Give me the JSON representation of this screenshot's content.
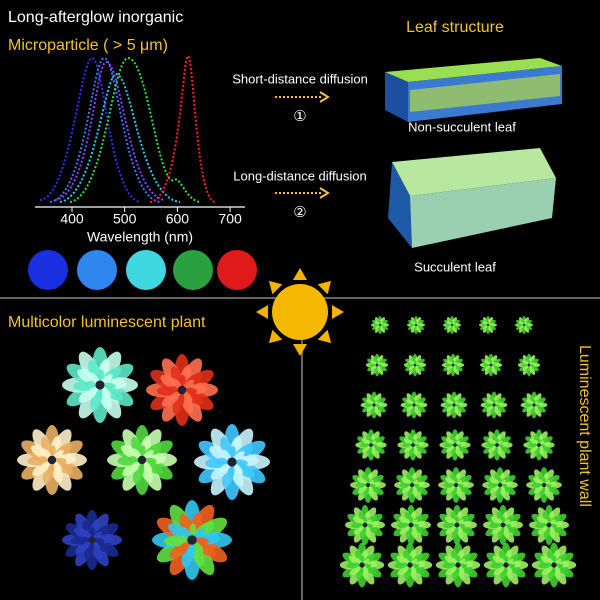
{
  "top_left": {
    "title_line1": "Long-afterglow inorganic",
    "title_line2": "Microparticle ( > 5 μm)",
    "x_axis_label": "Wavelength (nm)",
    "x_ticks": [
      400,
      500,
      600,
      700
    ]
  },
  "top_right": {
    "title": "Leaf structure",
    "step1": {
      "label": "Short-distance diffusion",
      "number": "①",
      "result": "Non-succulent leaf"
    },
    "step2": {
      "label": "Long-distance diffusion",
      "number": "②",
      "result": "Succulent leaf"
    }
  },
  "bottom_left": {
    "title": "Multicolor luminescent plant"
  },
  "bottom_right": {
    "title": "Luminescent plant wall"
  }
}
